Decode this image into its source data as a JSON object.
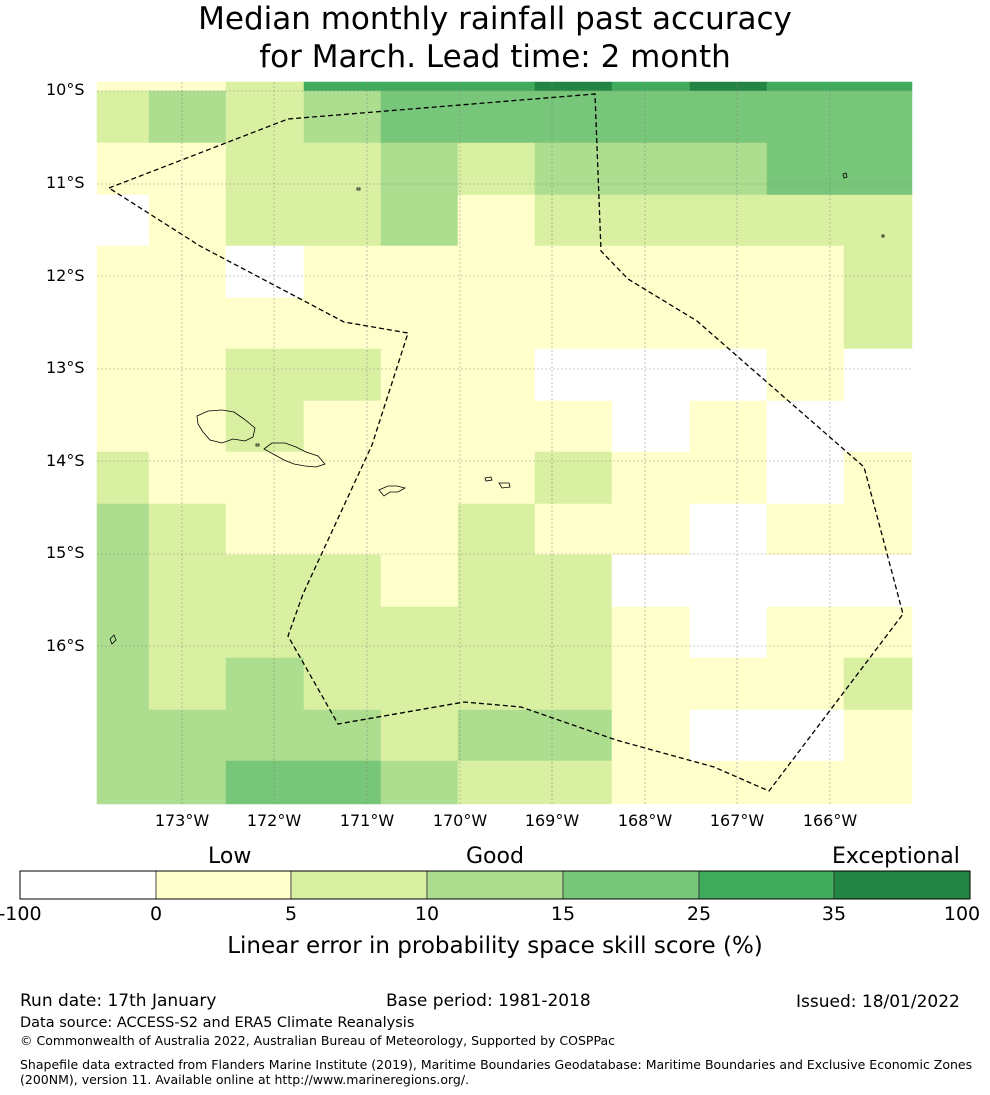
{
  "title": {
    "line1": "Median monthly rainfall past accuracy",
    "line2": "for March. Lead time: 2 month"
  },
  "map": {
    "lat_labels": [
      "10°S",
      "11°S",
      "12°S",
      "13°S",
      "14°S",
      "15°S",
      "16°S"
    ],
    "lon_labels": [
      "173°W",
      "172°W",
      "171°W",
      "170°W",
      "169°W",
      "168°W",
      "167°W",
      "166°W"
    ],
    "lon_range": [
      -173.9,
      -164.9
    ],
    "lat_range": [
      -17.7,
      -9.9
    ],
    "boundary_color": "#000000",
    "grid_color": "#808080"
  },
  "colorbar": {
    "categories": [
      "Low",
      "Good",
      "Exceptional"
    ],
    "ticks": [
      "-100",
      "0",
      "5",
      "10",
      "15",
      "25",
      "35",
      "100"
    ],
    "colors": [
      "#ffffff",
      "#ffffcc",
      "#d9f0a3",
      "#addd8e",
      "#78c679",
      "#41ab5d",
      "#238443"
    ],
    "label": "Linear error in probability space skill score (%)"
  },
  "footer": {
    "run_date": "Run date: 17th January",
    "base_period": "Base period: 1981-2018",
    "issued": "Issued: 18/01/2022",
    "data_source": "Data source: ACCESS-S2 and ERA5 Climate Reanalysis",
    "copyright": "© Commonwealth of Australia 2022, Australian Bureau of Meteorology, Supported by COSPPac",
    "shapefile_line1": "Shapefile data extracted from Flanders Marine Institute (2019), Maritime Boundaries Geodatabase: Maritime Boundaries and Exclusive Economic Zones",
    "shapefile_line2": "(200NM), version 11. Available online at http://www.marineregions.org/."
  }
}
